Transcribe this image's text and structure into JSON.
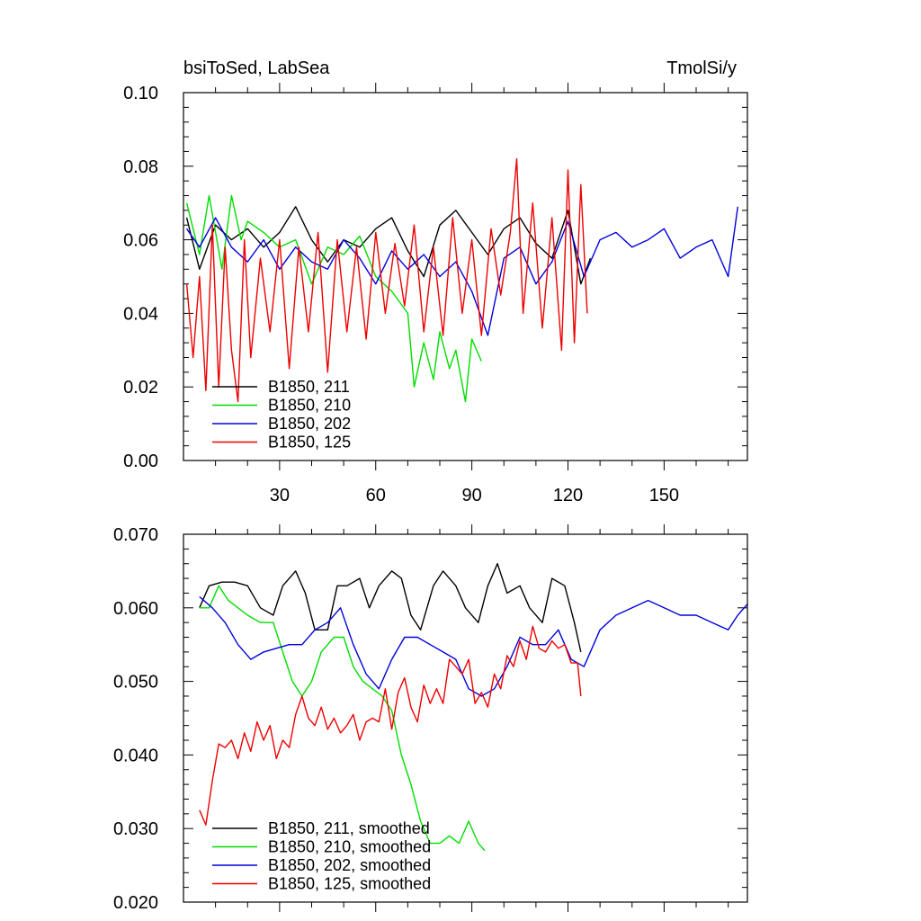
{
  "chart_data": [
    {
      "type": "line",
      "title": "bsiToSed, LabSea",
      "units": "TmolSi/y",
      "xlim": [
        0,
        176
      ],
      "ylim": [
        0.0,
        0.1
      ],
      "ytick_values": [
        0.0,
        0.02,
        0.04,
        0.06,
        0.08,
        0.1
      ],
      "ytick_labels": [
        "0.00",
        "0.02",
        "0.04",
        "0.06",
        "0.08",
        "0.10"
      ],
      "xtick_values": [
        30,
        60,
        90,
        120,
        150
      ],
      "xtick_labels": [
        "30",
        "60",
        "90",
        "120",
        "150"
      ],
      "grid": false,
      "legend_position": "bottom-left",
      "series": [
        {
          "name": "B1850, 211",
          "color": "#000000",
          "x": [
            1,
            5,
            10,
            15,
            20,
            25,
            30,
            35,
            40,
            45,
            50,
            55,
            60,
            65,
            70,
            75,
            80,
            85,
            90,
            95,
            100,
            105,
            110,
            115,
            120,
            124,
            127
          ],
          "values": [
            0.066,
            0.052,
            0.064,
            0.06,
            0.063,
            0.058,
            0.062,
            0.069,
            0.06,
            0.054,
            0.06,
            0.058,
            0.063,
            0.066,
            0.057,
            0.05,
            0.064,
            0.068,
            0.062,
            0.056,
            0.063,
            0.066,
            0.059,
            0.055,
            0.068,
            0.048,
            0.055
          ]
        },
        {
          "name": "B1850, 210",
          "color": "#00dd00",
          "x": [
            1,
            5,
            8,
            12,
            15,
            18,
            20,
            25,
            30,
            35,
            40,
            45,
            50,
            55,
            60,
            65,
            70,
            72,
            75,
            78,
            80,
            83,
            85,
            88,
            90,
            93
          ],
          "values": [
            0.07,
            0.056,
            0.072,
            0.052,
            0.072,
            0.06,
            0.065,
            0.062,
            0.058,
            0.06,
            0.048,
            0.058,
            0.056,
            0.061,
            0.05,
            0.046,
            0.04,
            0.02,
            0.032,
            0.022,
            0.035,
            0.025,
            0.03,
            0.016,
            0.033,
            0.027
          ]
        },
        {
          "name": "B1850, 202",
          "color": "#0000dd",
          "x": [
            1,
            5,
            10,
            15,
            20,
            25,
            30,
            35,
            40,
            45,
            50,
            55,
            60,
            65,
            70,
            75,
            80,
            85,
            90,
            95,
            100,
            105,
            110,
            115,
            120,
            125,
            130,
            135,
            140,
            145,
            150,
            155,
            160,
            165,
            170,
            173
          ],
          "values": [
            0.063,
            0.058,
            0.066,
            0.058,
            0.054,
            0.06,
            0.052,
            0.058,
            0.054,
            0.052,
            0.06,
            0.055,
            0.048,
            0.057,
            0.052,
            0.056,
            0.05,
            0.054,
            0.046,
            0.034,
            0.055,
            0.058,
            0.048,
            0.054,
            0.065,
            0.05,
            0.06,
            0.062,
            0.058,
            0.06,
            0.063,
            0.055,
            0.058,
            0.06,
            0.05,
            0.069
          ]
        },
        {
          "name": "B1850, 125",
          "color": "#ee0000",
          "x": [
            1,
            3,
            5,
            7,
            9,
            11,
            13,
            15,
            17,
            19,
            21,
            24,
            27,
            30,
            33,
            36,
            39,
            42,
            45,
            48,
            51,
            54,
            57,
            60,
            63,
            66,
            69,
            72,
            75,
            78,
            81,
            84,
            87,
            90,
            93,
            96,
            99,
            102,
            104,
            106,
            109,
            112,
            115,
            118,
            120,
            122,
            124,
            126
          ],
          "values": [
            0.048,
            0.028,
            0.05,
            0.019,
            0.064,
            0.02,
            0.058,
            0.03,
            0.016,
            0.06,
            0.028,
            0.055,
            0.035,
            0.06,
            0.025,
            0.058,
            0.035,
            0.062,
            0.024,
            0.06,
            0.035,
            0.058,
            0.033,
            0.062,
            0.04,
            0.059,
            0.042,
            0.064,
            0.035,
            0.058,
            0.034,
            0.066,
            0.04,
            0.06,
            0.034,
            0.063,
            0.045,
            0.062,
            0.082,
            0.04,
            0.07,
            0.036,
            0.066,
            0.03,
            0.079,
            0.032,
            0.075,
            0.04
          ]
        }
      ]
    },
    {
      "type": "line",
      "title": "",
      "xlim": [
        0,
        176
      ],
      "ylim": [
        0.02,
        0.07
      ],
      "ytick_values": [
        0.02,
        0.03,
        0.04,
        0.05,
        0.06,
        0.07
      ],
      "ytick_labels": [
        "0.020",
        "0.030",
        "0.040",
        "0.050",
        "0.060",
        "0.070"
      ],
      "xtick_values": [
        30,
        60,
        90,
        120,
        150
      ],
      "xtick_labels": [],
      "grid": false,
      "legend_position": "bottom-left",
      "series": [
        {
          "name": "B1850, 211, smoothed",
          "color": "#000000",
          "x": [
            5,
            8,
            12,
            16,
            20,
            24,
            28,
            31,
            35,
            38,
            41,
            45,
            48,
            51,
            55,
            58,
            61,
            65,
            68,
            71,
            74,
            78,
            81,
            85,
            88,
            92,
            95,
            98,
            101,
            105,
            108,
            112,
            115,
            119,
            122,
            124
          ],
          "values": [
            0.06,
            0.063,
            0.0635,
            0.0635,
            0.063,
            0.06,
            0.059,
            0.063,
            0.065,
            0.062,
            0.057,
            0.057,
            0.063,
            0.063,
            0.064,
            0.06,
            0.063,
            0.065,
            0.064,
            0.059,
            0.057,
            0.063,
            0.065,
            0.063,
            0.06,
            0.058,
            0.063,
            0.066,
            0.062,
            0.063,
            0.06,
            0.058,
            0.064,
            0.063,
            0.058,
            0.054
          ]
        },
        {
          "name": "B1850, 210, smoothed",
          "color": "#00dd00",
          "x": [
            5,
            8,
            11,
            14,
            17,
            20,
            24,
            28,
            31,
            34,
            37,
            40,
            43,
            47,
            50,
            53,
            56,
            59,
            62,
            65,
            68,
            71,
            74,
            77,
            80,
            83,
            86,
            89,
            92,
            94
          ],
          "values": [
            0.06,
            0.06,
            0.063,
            0.061,
            0.06,
            0.059,
            0.058,
            0.058,
            0.054,
            0.05,
            0.048,
            0.05,
            0.054,
            0.056,
            0.056,
            0.052,
            0.05,
            0.049,
            0.048,
            0.046,
            0.04,
            0.036,
            0.031,
            0.028,
            0.028,
            0.029,
            0.028,
            0.031,
            0.028,
            0.027
          ]
        },
        {
          "name": "B1850, 202, smoothed",
          "color": "#0000dd",
          "x": [
            5,
            9,
            13,
            17,
            21,
            25,
            29,
            33,
            37,
            41,
            45,
            49,
            53,
            57,
            61,
            65,
            69,
            73,
            77,
            81,
            85,
            89,
            93,
            97,
            101,
            105,
            109,
            113,
            117,
            121,
            125,
            130,
            135,
            140,
            145,
            150,
            155,
            160,
            165,
            170,
            173,
            176
          ],
          "values": [
            0.0615,
            0.06,
            0.058,
            0.055,
            0.053,
            0.054,
            0.0545,
            0.055,
            0.055,
            0.057,
            0.058,
            0.06,
            0.055,
            0.051,
            0.049,
            0.053,
            0.056,
            0.056,
            0.055,
            0.054,
            0.053,
            0.049,
            0.048,
            0.049,
            0.052,
            0.056,
            0.055,
            0.055,
            0.057,
            0.053,
            0.052,
            0.057,
            0.059,
            0.06,
            0.061,
            0.06,
            0.059,
            0.059,
            0.058,
            0.057,
            0.059,
            0.0605
          ]
        },
        {
          "name": "B1850, 125, smoothed",
          "color": "#ee0000",
          "x": [
            5,
            7,
            9,
            11,
            13,
            15,
            17,
            19,
            21,
            23,
            25,
            27,
            29,
            31,
            33,
            35,
            37,
            39,
            41,
            43,
            45,
            47,
            49,
            51,
            53,
            55,
            57,
            59,
            61,
            63,
            65,
            67,
            69,
            71,
            73,
            75,
            77,
            79,
            81,
            83,
            85,
            87,
            89,
            91,
            93,
            95,
            97,
            99,
            101,
            103,
            105,
            107,
            109,
            111,
            113,
            115,
            117,
            119,
            121,
            123,
            124
          ],
          "values": [
            0.0325,
            0.0305,
            0.0365,
            0.0415,
            0.041,
            0.042,
            0.0395,
            0.043,
            0.0405,
            0.0445,
            0.042,
            0.044,
            0.0395,
            0.042,
            0.041,
            0.0455,
            0.048,
            0.045,
            0.044,
            0.0465,
            0.0435,
            0.045,
            0.043,
            0.044,
            0.0455,
            0.042,
            0.0445,
            0.045,
            0.0445,
            0.049,
            0.0435,
            0.0485,
            0.0505,
            0.0465,
            0.0445,
            0.0495,
            0.047,
            0.049,
            0.047,
            0.053,
            0.052,
            0.051,
            0.053,
            0.047,
            0.0485,
            0.0465,
            0.051,
            0.049,
            0.0535,
            0.052,
            0.0555,
            0.053,
            0.0575,
            0.0545,
            0.054,
            0.0555,
            0.0545,
            0.055,
            0.0525,
            0.0525,
            0.048
          ]
        }
      ]
    }
  ]
}
